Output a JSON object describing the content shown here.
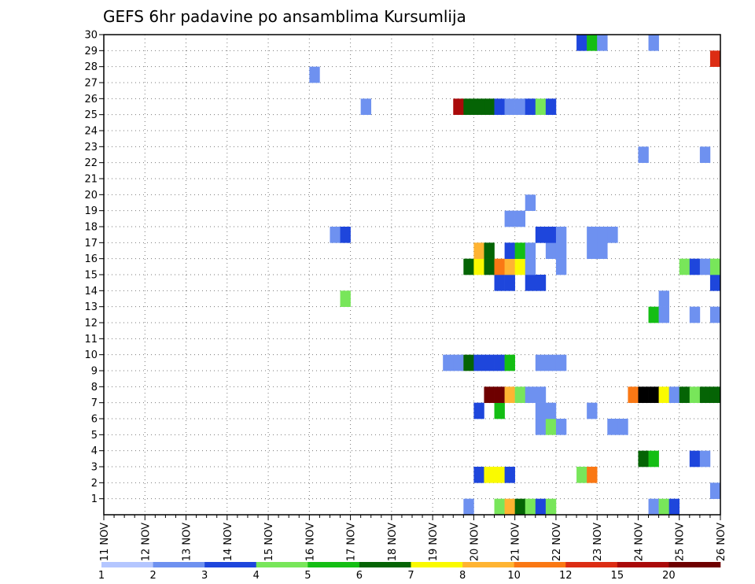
{
  "chart_data": {
    "type": "heatmap",
    "title": "GEFS 6hr padavine po ansamblima Kursumlija",
    "xlabel": "",
    "ylabel": "",
    "x_tick_labels": [
      "11 NOV",
      "12 NOV",
      "13 NOV",
      "14 NOV",
      "15 NOV",
      "16 NOV",
      "17 NOV",
      "18 NOV",
      "19 NOV",
      "20 NOV",
      "21 NOV",
      "22 NOV",
      "23 NOV",
      "24 NOV",
      "25 NOV",
      "26 NOV"
    ],
    "y_tick_labels": [
      "1",
      "2",
      "3",
      "4",
      "5",
      "6",
      "7",
      "8",
      "9",
      "10",
      "11",
      "12",
      "13",
      "14",
      "15",
      "16",
      "17",
      "18",
      "19",
      "20",
      "21",
      "22",
      "23",
      "24",
      "25",
      "26",
      "27",
      "28",
      "29",
      "30"
    ],
    "xlim": [
      0,
      60
    ],
    "ylim": [
      0,
      30
    ],
    "grid": true,
    "colorbar": {
      "labels": [
        "1",
        "2",
        "3",
        "4",
        "5",
        "6",
        "7",
        "8",
        "10",
        "12",
        "15",
        "20"
      ],
      "colors": [
        "#b4c6ff",
        "#6e91f0",
        "#1e46dc",
        "#78e65a",
        "#14be14",
        "#056405",
        "#fafa00",
        "#ffb432",
        "#fa7814",
        "#dc2d14",
        "#aa0a0a",
        "#6e0000"
      ]
    },
    "cells": [
      [
        0,
        35,
        1
      ],
      [
        0,
        38,
        3
      ],
      [
        0,
        39,
        7
      ],
      [
        0,
        40,
        5
      ],
      [
        0,
        41,
        3
      ],
      [
        0,
        42,
        2
      ],
      [
        0,
        43,
        3
      ],
      [
        0,
        53,
        1
      ],
      [
        0,
        54,
        3
      ],
      [
        0,
        55,
        2
      ],
      [
        1,
        59,
        1
      ],
      [
        2,
        36,
        2
      ],
      [
        2,
        37,
        6
      ],
      [
        2,
        38,
        6
      ],
      [
        2,
        39,
        2
      ],
      [
        2,
        46,
        3
      ],
      [
        2,
        47,
        8
      ],
      [
        3,
        52,
        5
      ],
      [
        3,
        53,
        4
      ],
      [
        3,
        57,
        2
      ],
      [
        3,
        58,
        1
      ],
      [
        5,
        42,
        1
      ],
      [
        5,
        43,
        3
      ],
      [
        5,
        44,
        1
      ],
      [
        5,
        49,
        1
      ],
      [
        5,
        50,
        1
      ],
      [
        6,
        36,
        2
      ],
      [
        6,
        38,
        4
      ],
      [
        6,
        42,
        1
      ],
      [
        6,
        43,
        1
      ],
      [
        6,
        47,
        1
      ],
      [
        7,
        37,
        11
      ],
      [
        7,
        38,
        11
      ],
      [
        7,
        39,
        7
      ],
      [
        7,
        40,
        3
      ],
      [
        7,
        41,
        1
      ],
      [
        7,
        42,
        1
      ],
      [
        7,
        51,
        8
      ],
      [
        7,
        52,
        12
      ],
      [
        7,
        53,
        12
      ],
      [
        7,
        54,
        6
      ],
      [
        7,
        55,
        1
      ],
      [
        7,
        56,
        5
      ],
      [
        7,
        57,
        3
      ],
      [
        7,
        58,
        5
      ],
      [
        7,
        59,
        5
      ],
      [
        9,
        33,
        1
      ],
      [
        9,
        34,
        1
      ],
      [
        9,
        35,
        5
      ],
      [
        9,
        36,
        2
      ],
      [
        9,
        37,
        2
      ],
      [
        9,
        38,
        2
      ],
      [
        9,
        39,
        4
      ],
      [
        9,
        42,
        1
      ],
      [
        9,
        43,
        1
      ],
      [
        9,
        44,
        1
      ],
      [
        12,
        53,
        4
      ],
      [
        12,
        54,
        1
      ],
      [
        12,
        57,
        1
      ],
      [
        12,
        59,
        1
      ],
      [
        13,
        23,
        3
      ],
      [
        13,
        54,
        1
      ],
      [
        14,
        38,
        2
      ],
      [
        14,
        39,
        2
      ],
      [
        14,
        41,
        2
      ],
      [
        14,
        42,
        2
      ],
      [
        14,
        59,
        2
      ],
      [
        15,
        35,
        5
      ],
      [
        15,
        36,
        6
      ],
      [
        15,
        37,
        5
      ],
      [
        15,
        38,
        8
      ],
      [
        15,
        39,
        7
      ],
      [
        15,
        40,
        6
      ],
      [
        15,
        41,
        1
      ],
      [
        15,
        44,
        1
      ],
      [
        15,
        56,
        3
      ],
      [
        15,
        57,
        2
      ],
      [
        15,
        58,
        1
      ],
      [
        15,
        59,
        3
      ],
      [
        16,
        36,
        7
      ],
      [
        16,
        37,
        5
      ],
      [
        16,
        39,
        2
      ],
      [
        16,
        40,
        4
      ],
      [
        16,
        41,
        1
      ],
      [
        16,
        43,
        1
      ],
      [
        16,
        44,
        1
      ],
      [
        16,
        47,
        1
      ],
      [
        16,
        48,
        1
      ],
      [
        17,
        22,
        1
      ],
      [
        17,
        23,
        2
      ],
      [
        17,
        42,
        2
      ],
      [
        17,
        43,
        2
      ],
      [
        17,
        44,
        1
      ],
      [
        17,
        47,
        1
      ],
      [
        17,
        48,
        1
      ],
      [
        17,
        49,
        1
      ],
      [
        18,
        39,
        1
      ],
      [
        18,
        40,
        1
      ],
      [
        19,
        41,
        1
      ],
      [
        22,
        52,
        1
      ],
      [
        22,
        58,
        1
      ],
      [
        25,
        34,
        10
      ],
      [
        25,
        35,
        5
      ],
      [
        25,
        36,
        5
      ],
      [
        25,
        37,
        5
      ],
      [
        25,
        38,
        2
      ],
      [
        25,
        39,
        1
      ],
      [
        25,
        40,
        1
      ],
      [
        25,
        41,
        2
      ],
      [
        25,
        42,
        3
      ],
      [
        25,
        43,
        2
      ],
      [
        25,
        25,
        1
      ],
      [
        27,
        20,
        1
      ],
      [
        28,
        59,
        9
      ],
      [
        29,
        46,
        2
      ],
      [
        29,
        47,
        4
      ],
      [
        29,
        48,
        1
      ],
      [
        29,
        53,
        1
      ]
    ]
  }
}
